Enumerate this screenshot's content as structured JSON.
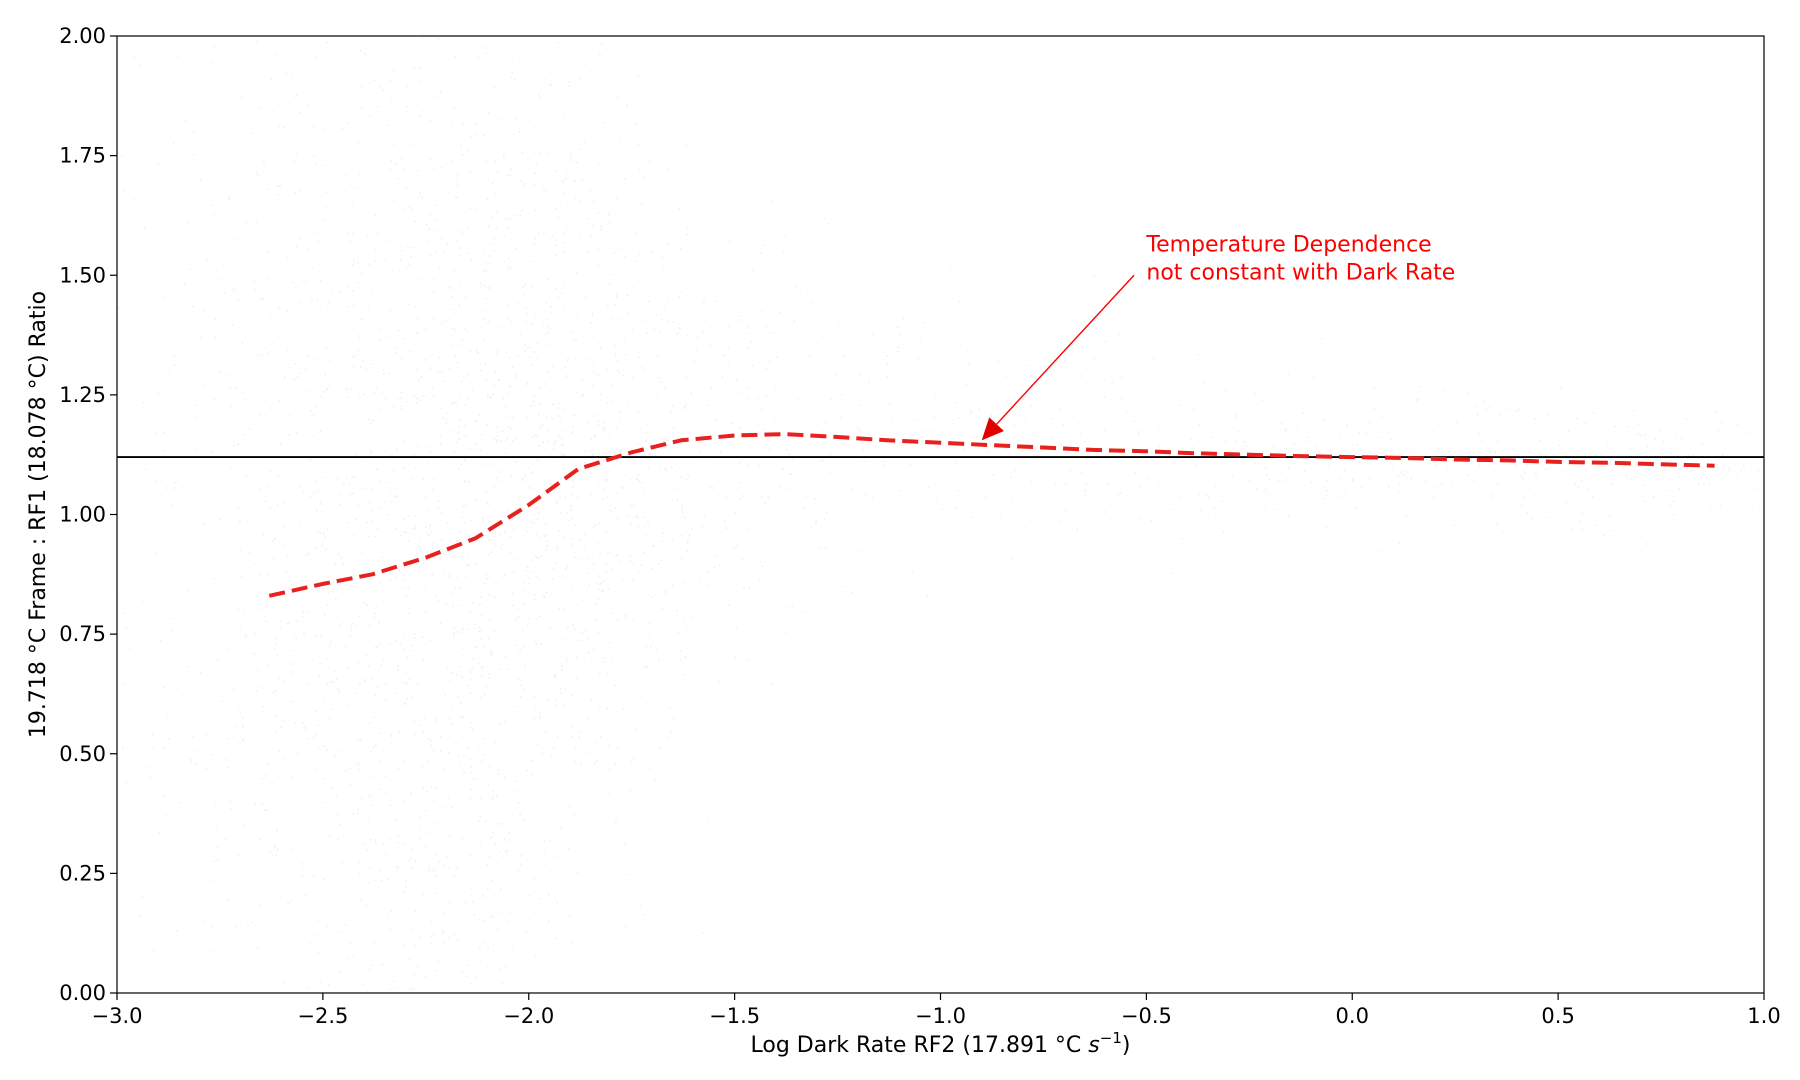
{
  "chart_data": {
    "type": "scatter",
    "xlabel": "Log Dark Rate RF2 (17.891 °C ",
    "xlabel_unit_base": "s",
    "xlabel_unit_exp": "−1",
    "xlabel_close": ")",
    "ylabel": "19.718 °C Frame : RF1 (18.078 °C) Ratio",
    "xlim": [
      -3.0,
      1.0
    ],
    "ylim": [
      0.0,
      2.0
    ],
    "x_ticks": [
      -3.0,
      -2.5,
      -2.0,
      -1.5,
      -1.0,
      -0.5,
      0.0,
      0.5,
      1.0
    ],
    "x_tick_labels": [
      "−3.0",
      "−2.5",
      "−2.0",
      "−1.5",
      "−1.0",
      "−0.5",
      "0.0",
      "0.5",
      "1.0"
    ],
    "y_ticks": [
      0.0,
      0.25,
      0.5,
      0.75,
      1.0,
      1.25,
      1.5,
      1.75,
      2.0
    ],
    "y_tick_labels": [
      "0.00",
      "0.25",
      "0.50",
      "0.75",
      "1.00",
      "1.25",
      "1.50",
      "1.75",
      "2.00"
    ],
    "grid": false,
    "reference_line": {
      "y": 1.12,
      "color": "#000000"
    },
    "trend_line": {
      "color": "#e8201e",
      "style": "dashed",
      "x": [
        -2.63,
        -2.5,
        -2.38,
        -2.25,
        -2.13,
        -2.0,
        -1.88,
        -1.75,
        -1.63,
        -1.5,
        -1.38,
        -1.25,
        -1.13,
        -1.0,
        -0.88,
        -0.75,
        -0.63,
        -0.5,
        -0.38,
        -0.25,
        -0.13,
        0.0,
        0.13,
        0.25,
        0.38,
        0.5,
        0.63,
        0.75,
        0.88
      ],
      "y": [
        0.83,
        0.855,
        0.875,
        0.91,
        0.95,
        1.02,
        1.095,
        1.13,
        1.155,
        1.165,
        1.168,
        1.162,
        1.155,
        1.15,
        1.145,
        1.14,
        1.135,
        1.132,
        1.128,
        1.125,
        1.122,
        1.12,
        1.118,
        1.115,
        1.113,
        1.11,
        1.108,
        1.105,
        1.102
      ]
    },
    "point_cloud_color": "#000000",
    "annotation": {
      "lines": [
        "Temperature Dependence",
        "not constant with Dark Rate"
      ],
      "color": "#ff0000",
      "text_x": -0.5,
      "text_y": 1.52,
      "arrow_from": [
        -0.53,
        1.5
      ],
      "arrow_to": [
        -0.9,
        1.155
      ]
    }
  }
}
